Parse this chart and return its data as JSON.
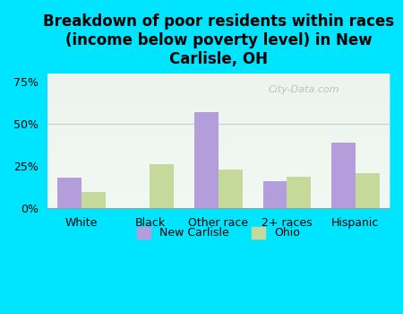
{
  "title": "Breakdown of poor residents within races\n(income below poverty level) in New\nCarlisle, OH",
  "categories": [
    "White",
    "Black",
    "Other race",
    "2+ races",
    "Hispanic"
  ],
  "new_carlisle": [
    18,
    0,
    57,
    16,
    39
  ],
  "ohio": [
    10,
    26,
    23,
    19,
    21
  ],
  "color_nc": "#b39ddb",
  "color_ohio": "#c5d99a",
  "bg_color": "#00e5ff",
  "plot_bg_top": "#f0f4f0",
  "yticks": [
    0,
    25,
    50,
    75
  ],
  "ylim": [
    0,
    80
  ],
  "bar_width": 0.35,
  "title_fontsize": 12,
  "legend_labels": [
    "New Carlisle",
    "Ohio"
  ]
}
